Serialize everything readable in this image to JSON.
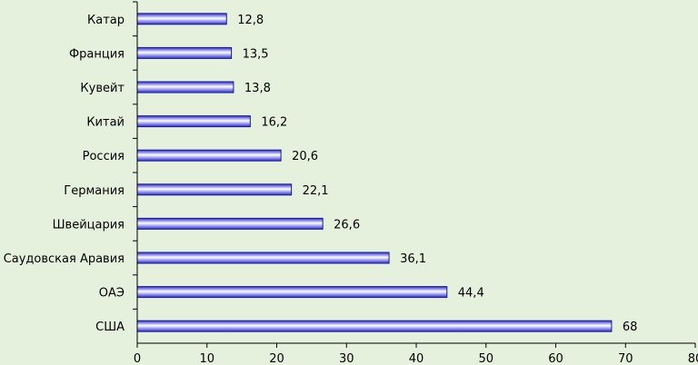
{
  "chart_data": {
    "type": "bar",
    "orientation": "horizontal",
    "categories": [
      "Катар",
      "Франция",
      "Кувейт",
      "Китай",
      "Россия",
      "Германия",
      "Швейцария",
      "Саудовская Аравия",
      "ОАЭ",
      "США"
    ],
    "values": [
      12.8,
      13.5,
      13.8,
      16.2,
      20.6,
      22.1,
      26.6,
      36.1,
      44.4,
      68
    ],
    "value_labels": [
      "12,8",
      "13,5",
      "13,8",
      "16,2",
      "20,6",
      "22,1",
      "26,6",
      "36,1",
      "44,4",
      "68"
    ],
    "xlim": [
      0,
      80
    ],
    "xticks": [
      0,
      10,
      20,
      30,
      40,
      50,
      60,
      70,
      80
    ],
    "title": "",
    "xlabel": "",
    "ylabel": "",
    "grid": false,
    "legend": "none",
    "colors": {
      "background": "#e6f1dd",
      "bar_dark": "#2b2bd6",
      "bar_light": "#ffffff",
      "bar_stroke": "#1a1a8c",
      "axis": "#000000"
    }
  }
}
